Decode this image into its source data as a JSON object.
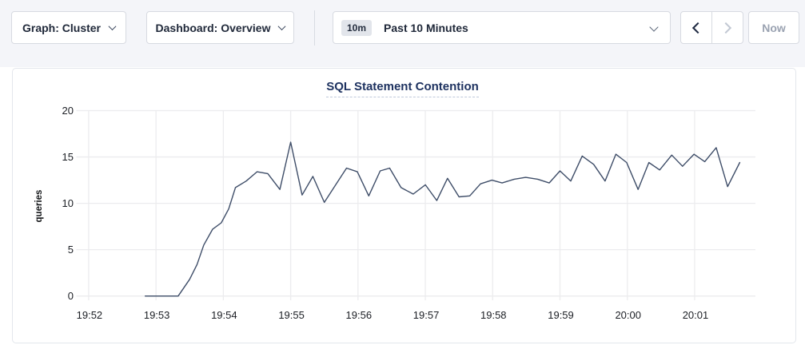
{
  "toolbar": {
    "graph_dropdown_label": "Graph: Cluster",
    "dashboard_dropdown_label": "Dashboard: Overview",
    "time_selector": {
      "badge": "10m",
      "label": "Past 10 Minutes"
    },
    "now_button_label": "Now"
  },
  "colors": {
    "topbar_bg": "#f4f5f9",
    "button_border": "#d7dae1",
    "toolbar_text": "#20293a",
    "title_text": "#1e3260",
    "gridline": "#ececee",
    "tick_text": "#1b1e24",
    "series_line": "#3e4d68",
    "disabled_text": "#9aa2b1"
  },
  "chart_data": {
    "type": "line",
    "title": "SQL Statement Contention",
    "xlabel": "",
    "ylabel": "queries",
    "ylim": [
      0,
      20
    ],
    "y_ticks": [
      0,
      5,
      10,
      15,
      20
    ],
    "x_ticks": [
      "19:52",
      "19:53",
      "19:54",
      "19:55",
      "19:56",
      "19:57",
      "19:58",
      "19:59",
      "20:00",
      "20:01"
    ],
    "grid": true,
    "legend_position": "none",
    "series": [
      {
        "name": "queries",
        "color": "#3e4d68",
        "x_minutes_after_1952": [
          0.84,
          1.0,
          1.17,
          1.33,
          1.5,
          1.61,
          1.71,
          1.84,
          1.97,
          2.08,
          2.18,
          2.34,
          2.5,
          2.66,
          2.84,
          3.0,
          3.17,
          3.33,
          3.5,
          3.66,
          3.83,
          3.99,
          4.16,
          4.33,
          4.47,
          4.64,
          4.82,
          5.0,
          5.17,
          5.33,
          5.5,
          5.66,
          5.82,
          5.99,
          6.14,
          6.32,
          6.49,
          6.67,
          6.84,
          7.0,
          7.16,
          7.33,
          7.5,
          7.67,
          7.83,
          7.99,
          8.16,
          8.32,
          8.48,
          8.66,
          8.82,
          8.99,
          9.15,
          9.32,
          9.49,
          9.67
        ],
        "values": [
          0,
          0,
          0,
          0,
          1.8,
          3.4,
          5.5,
          7.2,
          7.9,
          9.4,
          11.7,
          12.4,
          13.4,
          13.2,
          11.5,
          16.6,
          10.9,
          12.9,
          10.1,
          11.9,
          13.8,
          13.4,
          10.8,
          13.5,
          13.8,
          11.7,
          11.0,
          12.0,
          10.3,
          12.7,
          10.7,
          10.8,
          12.1,
          12.5,
          12.2,
          12.6,
          12.8,
          12.6,
          12.2,
          13.5,
          12.4,
          15.1,
          14.2,
          12.4,
          15.3,
          14.4,
          11.5,
          14.4,
          13.6,
          15.2,
          14.0,
          15.3,
          14.5,
          16.0,
          11.8,
          14.4
        ]
      }
    ]
  }
}
